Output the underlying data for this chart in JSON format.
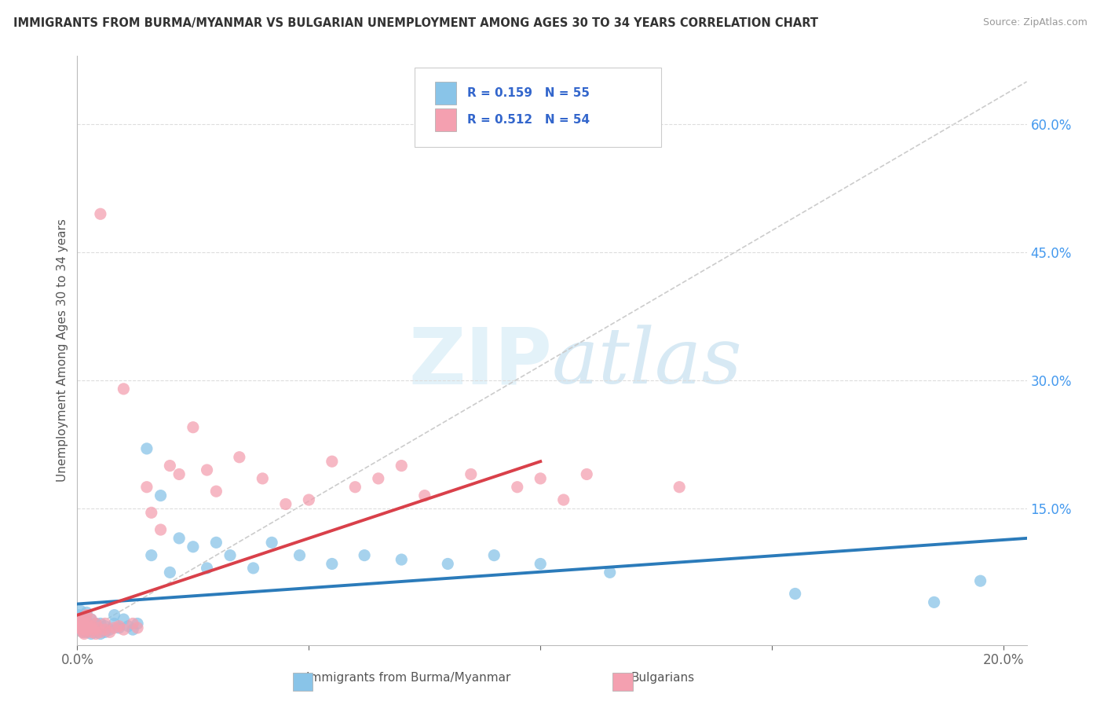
{
  "title": "IMMIGRANTS FROM BURMA/MYANMAR VS BULGARIAN UNEMPLOYMENT AMONG AGES 30 TO 34 YEARS CORRELATION CHART",
  "source": "Source: ZipAtlas.com",
  "ylabel": "Unemployment Among Ages 30 to 34 years",
  "xlim": [
    0.0,
    0.205
  ],
  "ylim": [
    -0.01,
    0.68
  ],
  "ytick_right_vals": [
    0.6,
    0.45,
    0.3,
    0.15
  ],
  "ytick_right_labels": [
    "60.0%",
    "45.0%",
    "30.0%",
    "15.0%"
  ],
  "blue_color": "#89c4e8",
  "pink_color": "#f4a0b0",
  "trend_blue_color": "#2b7bba",
  "trend_pink_color": "#d9404a",
  "ref_line_color": "#cccccc",
  "background_color": "#ffffff",
  "grid_color": "#dddddd",
  "legend_blue_R": "R = 0.159",
  "legend_blue_N": "N = 55",
  "legend_pink_R": "R = 0.512",
  "legend_pink_N": "N = 54",
  "blue_scatter_x": [
    0.0003,
    0.0005,
    0.0007,
    0.001,
    0.001,
    0.0012,
    0.0015,
    0.0015,
    0.002,
    0.002,
    0.002,
    0.002,
    0.0025,
    0.003,
    0.003,
    0.003,
    0.0035,
    0.004,
    0.004,
    0.0045,
    0.005,
    0.005,
    0.005,
    0.006,
    0.006,
    0.007,
    0.008,
    0.008,
    0.009,
    0.01,
    0.011,
    0.012,
    0.013,
    0.015,
    0.016,
    0.018,
    0.02,
    0.022,
    0.025,
    0.028,
    0.03,
    0.033,
    0.038,
    0.042,
    0.048,
    0.055,
    0.062,
    0.07,
    0.08,
    0.09,
    0.1,
    0.115,
    0.155,
    0.185,
    0.195
  ],
  "blue_scatter_y": [
    0.025,
    0.015,
    0.03,
    0.01,
    0.02,
    0.005,
    0.015,
    0.025,
    0.008,
    0.018,
    0.028,
    0.005,
    0.012,
    0.003,
    0.01,
    0.02,
    0.008,
    0.005,
    0.015,
    0.01,
    0.003,
    0.008,
    0.015,
    0.005,
    0.012,
    0.008,
    0.015,
    0.025,
    0.01,
    0.02,
    0.012,
    0.008,
    0.015,
    0.22,
    0.095,
    0.165,
    0.075,
    0.115,
    0.105,
    0.08,
    0.11,
    0.095,
    0.08,
    0.11,
    0.095,
    0.085,
    0.095,
    0.09,
    0.085,
    0.095,
    0.085,
    0.075,
    0.05,
    0.04,
    0.065
  ],
  "pink_scatter_x": [
    0.0003,
    0.0005,
    0.0007,
    0.001,
    0.001,
    0.0012,
    0.0013,
    0.0015,
    0.0015,
    0.002,
    0.002,
    0.002,
    0.0025,
    0.003,
    0.003,
    0.003,
    0.0035,
    0.004,
    0.004,
    0.0045,
    0.005,
    0.005,
    0.006,
    0.006,
    0.007,
    0.008,
    0.009,
    0.01,
    0.01,
    0.012,
    0.013,
    0.015,
    0.016,
    0.018,
    0.02,
    0.022,
    0.025,
    0.028,
    0.03,
    0.035,
    0.04,
    0.045,
    0.05,
    0.055,
    0.06,
    0.065,
    0.07,
    0.075,
    0.085,
    0.095,
    0.1,
    0.105,
    0.11,
    0.13
  ],
  "pink_scatter_y": [
    0.02,
    0.01,
    0.015,
    0.008,
    0.018,
    0.005,
    0.012,
    0.003,
    0.022,
    0.007,
    0.015,
    0.025,
    0.01,
    0.005,
    0.012,
    0.02,
    0.008,
    0.003,
    0.015,
    0.01,
    0.005,
    0.495,
    0.008,
    0.015,
    0.005,
    0.01,
    0.012,
    0.008,
    0.29,
    0.015,
    0.01,
    0.175,
    0.145,
    0.125,
    0.2,
    0.19,
    0.245,
    0.195,
    0.17,
    0.21,
    0.185,
    0.155,
    0.16,
    0.205,
    0.175,
    0.185,
    0.2,
    0.165,
    0.19,
    0.175,
    0.185,
    0.16,
    0.19,
    0.175
  ],
  "pink_trend_x": [
    0.0,
    0.1
  ],
  "blue_trend_x": [
    0.0,
    0.205
  ]
}
